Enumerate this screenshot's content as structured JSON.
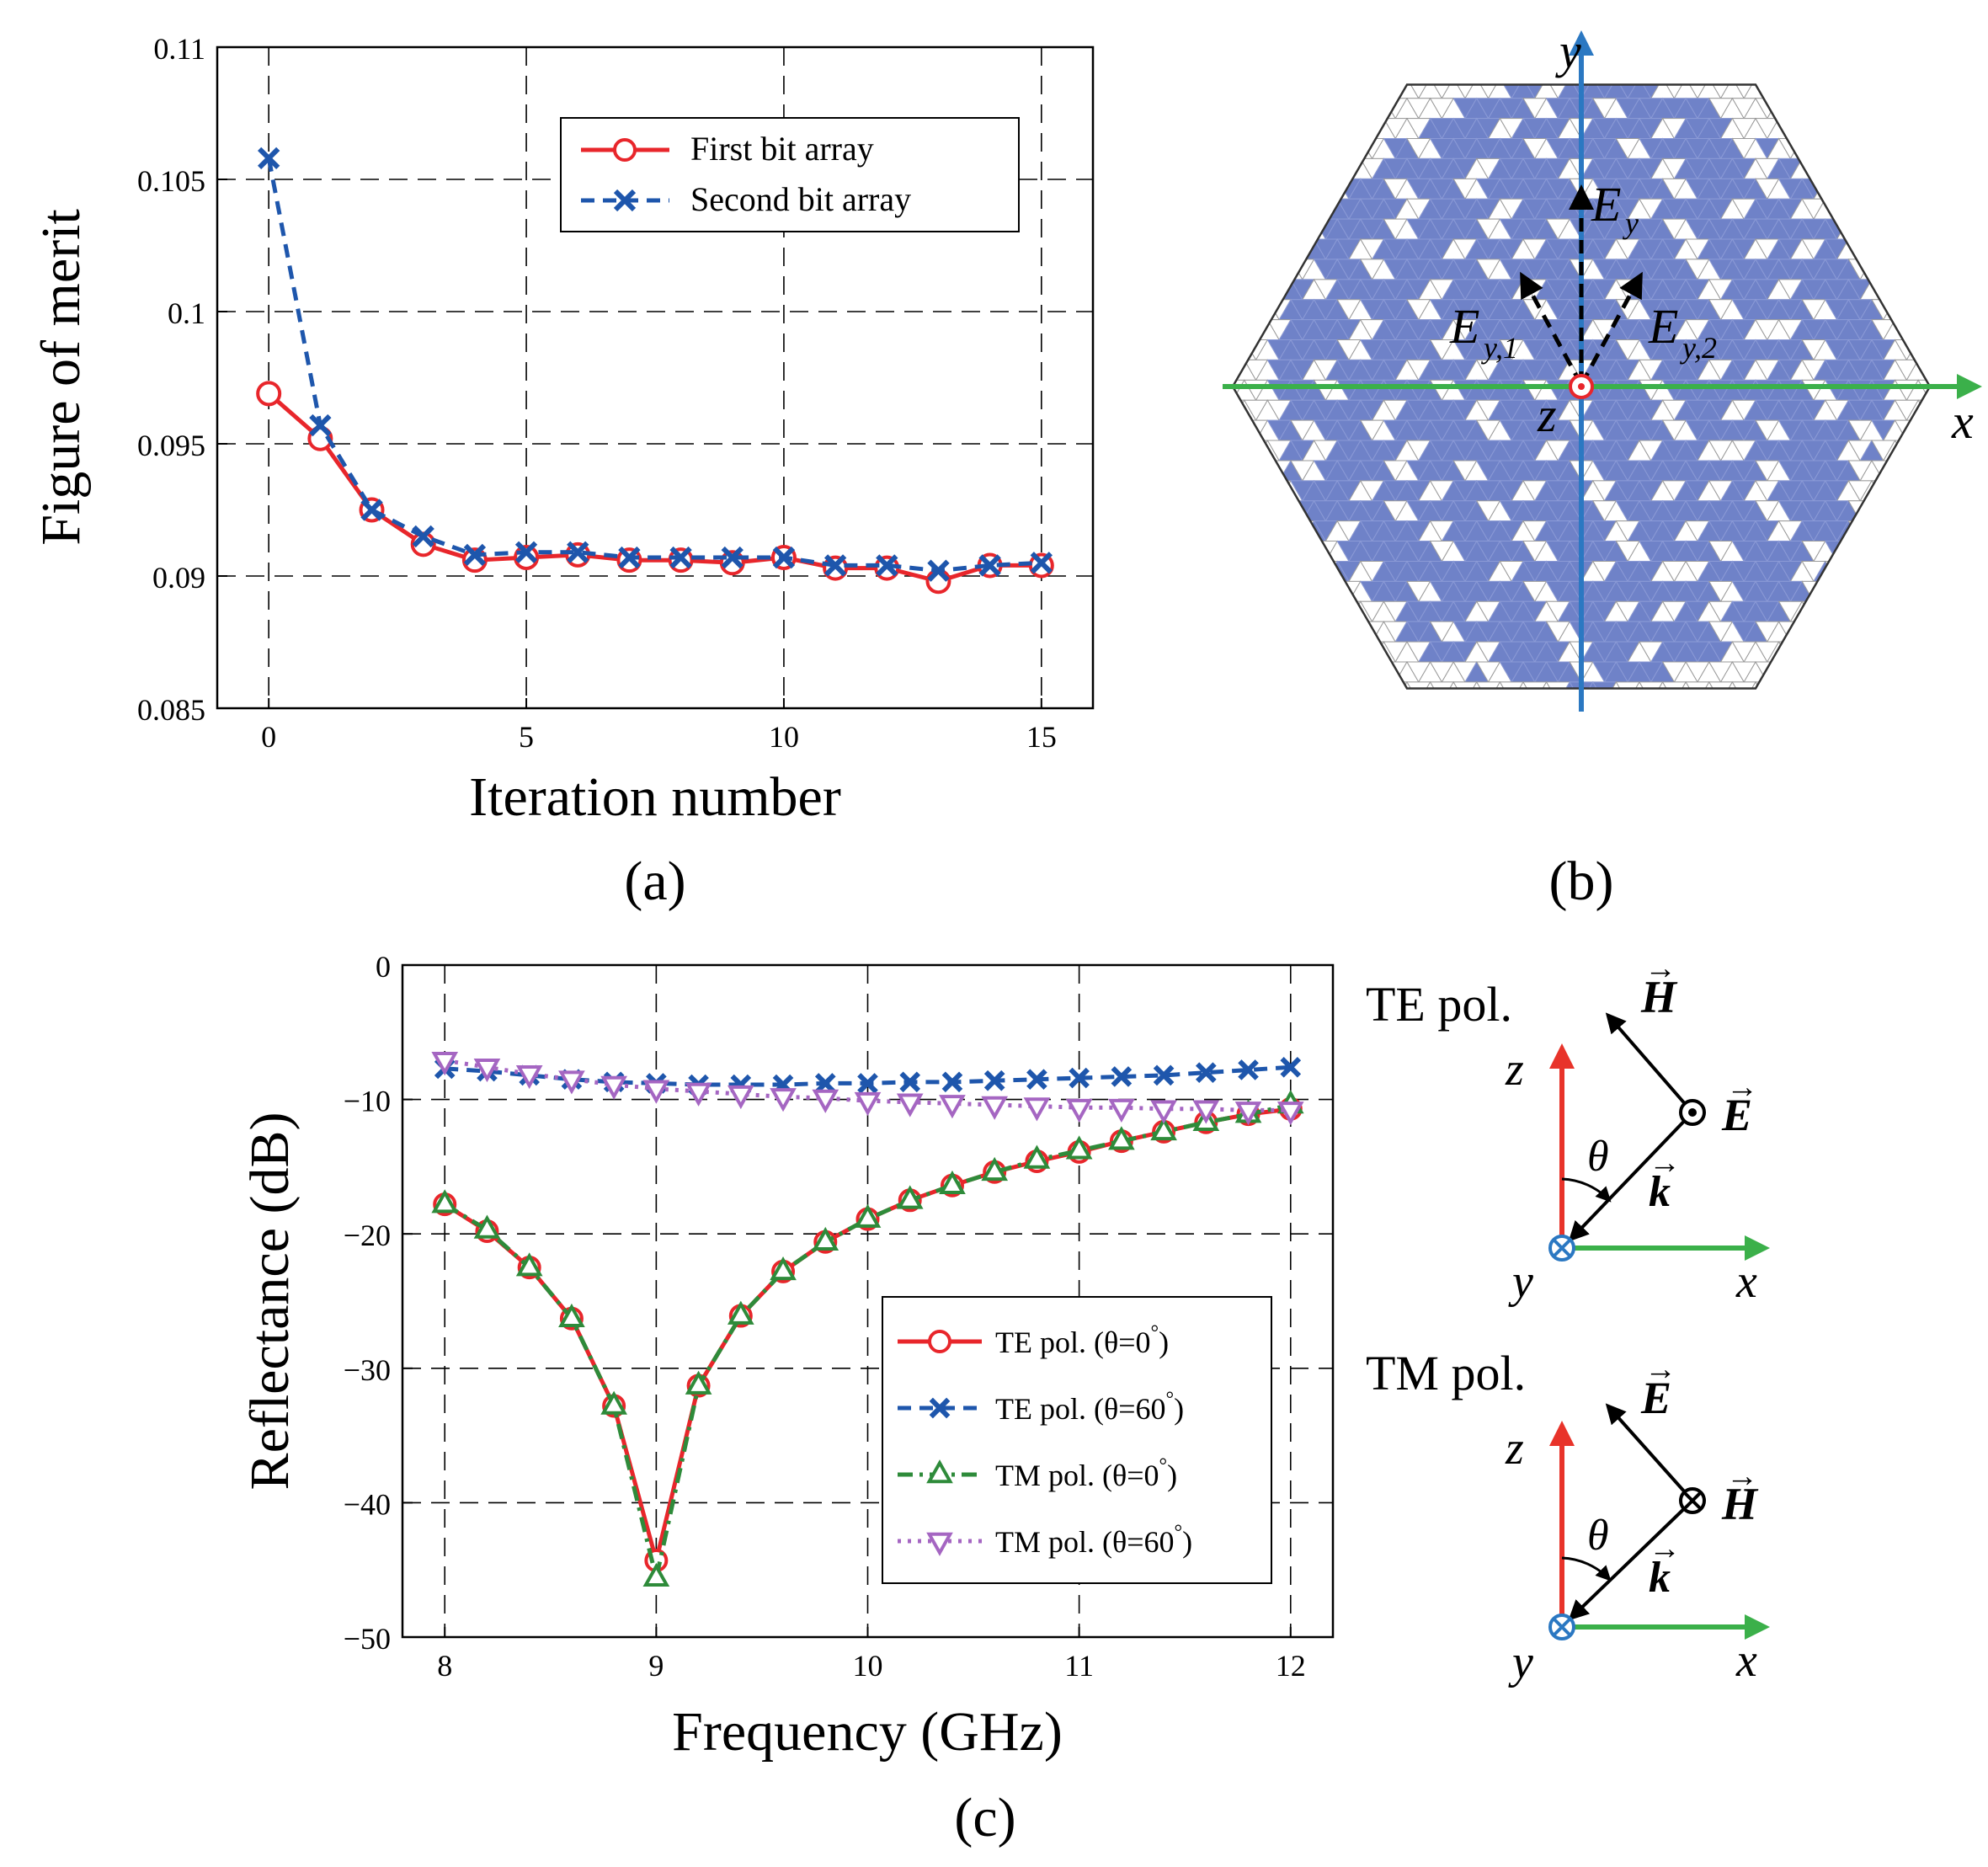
{
  "chart_data": [
    {
      "id": "a",
      "type": "line",
      "panel_label": "(a)",
      "xlabel": "Iteration number",
      "ylabel": "Figure of merit",
      "xlim": [
        -1,
        16
      ],
      "ylim": [
        0.085,
        0.11
      ],
      "xticks": [
        0,
        5,
        10,
        15
      ],
      "xtick_labels": [
        "0",
        "5",
        "10",
        "15"
      ],
      "yticks": [
        0.085,
        0.09,
        0.095,
        0.1,
        0.105,
        0.11
      ],
      "ytick_labels": [
        "0.085",
        "0.09",
        "0.095",
        "0.1",
        "0.105",
        "0.11"
      ],
      "grid": true,
      "legend_position": "top-right",
      "x": [
        0,
        1,
        2,
        3,
        4,
        5,
        6,
        7,
        8,
        9,
        10,
        11,
        12,
        13,
        14,
        15
      ],
      "series": [
        {
          "name": "First bit array",
          "color": "#e8262b",
          "marker": "circle",
          "dash": "solid",
          "values": [
            0.0969,
            0.0952,
            0.0925,
            0.0912,
            0.0906,
            0.0907,
            0.0908,
            0.0906,
            0.0906,
            0.0905,
            0.0907,
            0.0903,
            0.0903,
            0.0898,
            0.0904,
            0.0904
          ]
        },
        {
          "name": "Second bit array",
          "color": "#1e56ac",
          "marker": "x",
          "dash": "dashed",
          "values": [
            0.1058,
            0.0957,
            0.0925,
            0.0915,
            0.0908,
            0.0909,
            0.0909,
            0.0907,
            0.0907,
            0.0907,
            0.0907,
            0.0904,
            0.0904,
            0.0902,
            0.0904,
            0.0905
          ]
        }
      ]
    },
    {
      "id": "c",
      "type": "line",
      "panel_label": "(c)",
      "xlabel": "Frequency (GHz)",
      "ylabel": "Reflectance (dB)",
      "xlim": [
        7.8,
        12.2
      ],
      "ylim": [
        -50,
        0
      ],
      "xticks": [
        8,
        9,
        10,
        11,
        12
      ],
      "xtick_labels": [
        "8",
        "9",
        "10",
        "11",
        "12"
      ],
      "yticks": [
        0,
        -10,
        -20,
        -30,
        -40,
        -50
      ],
      "ytick_labels": [
        "0",
        "−10",
        "−20",
        "−30",
        "−40",
        "−50"
      ],
      "grid": true,
      "legend_position": "bottom-right",
      "x": [
        8.0,
        8.2,
        8.4,
        8.6,
        8.8,
        9.0,
        9.2,
        9.4,
        9.6,
        9.8,
        10.0,
        10.2,
        10.4,
        10.6,
        10.8,
        11.0,
        11.2,
        11.4,
        11.6,
        11.8,
        12.0
      ],
      "series": [
        {
          "name_prefix": "TE pol. (θ=0",
          "name_suffix": ")",
          "deg": "°",
          "color": "#e8262b",
          "marker": "circle",
          "dash": "solid",
          "values": [
            -17.8,
            -19.8,
            -22.5,
            -26.3,
            -32.8,
            -44.3,
            -31.3,
            -26.1,
            -22.8,
            -20.6,
            -18.9,
            -17.5,
            -16.4,
            -15.4,
            -14.6,
            -13.9,
            -13.1,
            -12.4,
            -11.7,
            -11.1,
            -10.7
          ]
        },
        {
          "name_prefix": "TE pol. (θ=60",
          "name_suffix": ")",
          "deg": "°",
          "color": "#1e56ac",
          "marker": "x",
          "dash": "dashed",
          "values": [
            -7.7,
            -7.9,
            -8.2,
            -8.5,
            -8.7,
            -8.8,
            -8.9,
            -8.9,
            -8.9,
            -8.8,
            -8.8,
            -8.7,
            -8.7,
            -8.6,
            -8.5,
            -8.4,
            -8.3,
            -8.2,
            -8.0,
            -7.8,
            -7.6
          ]
        },
        {
          "name_prefix": "TM pol. (θ=0",
          "name_suffix": ")",
          "deg": "°",
          "color": "#2e8b3a",
          "marker": "triangle-up",
          "dash": "dashdot",
          "values": [
            -17.8,
            -19.7,
            -22.5,
            -26.3,
            -32.8,
            -45.6,
            -31.3,
            -26.1,
            -22.8,
            -20.6,
            -18.9,
            -17.5,
            -16.4,
            -15.4,
            -14.5,
            -13.8,
            -13.1,
            -12.4,
            -11.7,
            -11.1,
            -10.4
          ]
        },
        {
          "name_prefix": "TM pol. (θ=60",
          "name_suffix": ")",
          "deg": "°",
          "color": "#a566c2",
          "marker": "triangle-down",
          "dash": "dotted",
          "values": [
            -7.1,
            -7.6,
            -8.1,
            -8.5,
            -8.9,
            -9.2,
            -9.4,
            -9.6,
            -9.8,
            -9.9,
            -10.1,
            -10.2,
            -10.3,
            -10.4,
            -10.5,
            -10.6,
            -10.6,
            -10.7,
            -10.7,
            -10.8,
            -10.8
          ]
        }
      ]
    }
  ],
  "panel_b": {
    "label": "(b)",
    "axis_x": "x",
    "axis_y": "y",
    "axis_z": "z",
    "E_main": "E",
    "E_main_sub": "y",
    "E_1": "E",
    "E_1_sub": "y,1",
    "E_2": "E",
    "E_2_sub": "y,2",
    "fill_color": "#6f82c8",
    "x_axis_color": "#3bb04a",
    "y_axis_color": "#2b78c2"
  },
  "pol_diagrams": [
    {
      "title": "TE pol.",
      "field_diag": "H",
      "field_out": "E",
      "wave": "k",
      "angle": "θ",
      "z": "z",
      "y": "y",
      "x": "x"
    },
    {
      "title": "TM pol.",
      "field_diag": "E",
      "field_out": "H",
      "wave": "k",
      "angle": "θ",
      "z": "z",
      "y": "y",
      "x": "x"
    }
  ],
  "colors": {
    "red": "#e8262b",
    "blue": "#1e56ac",
    "green": "#3bb04a",
    "axis_red": "#e8332a"
  }
}
